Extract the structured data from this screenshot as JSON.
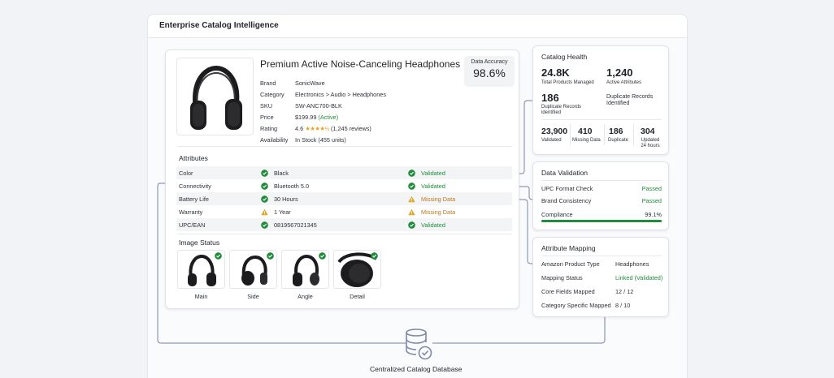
{
  "app": {
    "title": "Enterprise Catalog Intelligence"
  },
  "product": {
    "title": "Premium Active Noise-Canceling Headphones",
    "accuracy_label": "Data Accuracy",
    "accuracy_value": "98.6%",
    "specs": [
      {
        "key": "Brand",
        "value": "SonicWave"
      },
      {
        "key": "Category",
        "value": "Electronics > Audio > Headphones"
      },
      {
        "key": "SKU",
        "value": "SW-ANC700-BLK"
      },
      {
        "key": "Price",
        "value": "$199.99",
        "extra": "(Active)"
      },
      {
        "key": "Rating",
        "value": "4.6",
        "stars": "★★★★½",
        "extra": "(1,245 reviews)"
      },
      {
        "key": "Availability",
        "value": "In Stock (455 units)"
      }
    ]
  },
  "attributes": {
    "title": "Attributes",
    "rows": [
      {
        "name": "Color",
        "value": "Black",
        "value_icon": "check-circle-icon",
        "status": "Validated",
        "status_icon": "check-circle-icon"
      },
      {
        "name": "Connectivity",
        "value": "Bluetooth 5.0",
        "value_icon": "check-circle-icon",
        "status": "Validated",
        "status_icon": "check-circle-icon"
      },
      {
        "name": "Battery Life",
        "value": "30 Hours",
        "value_icon": "check-circle-icon",
        "status": "Missing Data",
        "status_icon": "warning-icon"
      },
      {
        "name": "Warranty",
        "value": "1 Year",
        "value_icon": "warning-icon",
        "status": "Missing Data",
        "status_icon": "warning-icon"
      },
      {
        "name": "UPC/EAN",
        "value": "0819567021345",
        "value_icon": "check-circle-icon",
        "status": "Validated",
        "status_icon": "check-circle-icon"
      }
    ]
  },
  "image_status": {
    "title": "Image Status",
    "items": [
      {
        "label": "Main"
      },
      {
        "label": "Side"
      },
      {
        "label": "Angle"
      },
      {
        "label": "Detail"
      }
    ]
  },
  "catalog_health": {
    "title": "Catalog Health",
    "total_products_value": "24.8K",
    "total_products_label": "Total Products Managed",
    "active_attributes_value": "1,240",
    "active_attributes_label": "Active Attributes",
    "duplicate_records_value": "186",
    "duplicate_records_label": "Duplicate Records identified",
    "duplicate_records_label_right": "Duplicate Records Identified",
    "validated_value": "23,900",
    "validated_label": "Validated",
    "missing_value": "410",
    "missing_label": "Missing Data",
    "duplicate_value": "186",
    "duplicate_label": "Duplicate",
    "updated_value": "304",
    "updated_label_1": "Updated",
    "updated_label_2": "24 hours"
  },
  "data_validation": {
    "title": "Data Validation",
    "rows": [
      {
        "key": "UPC Format Check",
        "value": "Passed"
      },
      {
        "key": "Brand Consistency",
        "value": "Passed"
      }
    ],
    "compliance_label": "Compliance",
    "compliance_value": "99.1%",
    "compliance_fraction": 0.991
  },
  "attribute_mapping": {
    "title": "Attribute Mapping",
    "rows": [
      {
        "key": "Amazon Product Type",
        "value": "Headphones"
      },
      {
        "key": "Mapping Status",
        "value": "Linked (Validated)"
      },
      {
        "key": "Core Fields Mapped",
        "value": "12 / 12"
      },
      {
        "key": "Category Specific Mapped",
        "value": "8 / 10"
      }
    ]
  },
  "database": {
    "label": "Centralized Catalog Database"
  },
  "colors": {
    "success": "#1e8c3a",
    "warning": "#e0a526",
    "star": "#e0a526"
  }
}
